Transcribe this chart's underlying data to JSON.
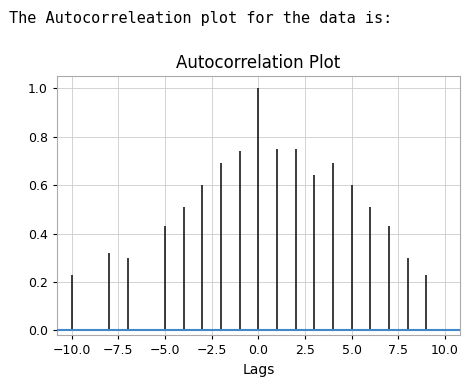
{
  "title": "Autocorrelation Plot",
  "xlabel": "Lags",
  "suptitle": "The Autocorreleation plot for the data is:",
  "lags": [
    -10,
    -9,
    -8,
    -7,
    -6,
    -5,
    -4,
    -3,
    -2,
    -1,
    0,
    1,
    2,
    3,
    4,
    5,
    6,
    7,
    8,
    9,
    10
  ],
  "acf_values": [
    0.23,
    0.0,
    0.32,
    0.3,
    0.0,
    0.43,
    0.51,
    0.6,
    0.69,
    0.74,
    1.0,
    0.75,
    0.75,
    0.64,
    0.69,
    0.6,
    0.51,
    0.43,
    0.3,
    0.23,
    0.0
  ],
  "bar_color": "#1a1a1a",
  "hline_color": "#4488cc",
  "background_color": "#ffffff",
  "grid_color": "#cccccc",
  "ylim": [
    -0.02,
    1.05
  ],
  "xlim": [
    -10.8,
    10.8
  ],
  "title_fontsize": 12,
  "suptitle_fontsize": 11,
  "xticks": [
    -10.0,
    -7.5,
    -5.0,
    -2.5,
    0.0,
    2.5,
    5.0,
    7.5,
    10.0
  ],
  "yticks": [
    0.0,
    0.2,
    0.4,
    0.6,
    0.8,
    1.0
  ],
  "figsize": [
    4.74,
    3.81
  ],
  "dpi": 100
}
